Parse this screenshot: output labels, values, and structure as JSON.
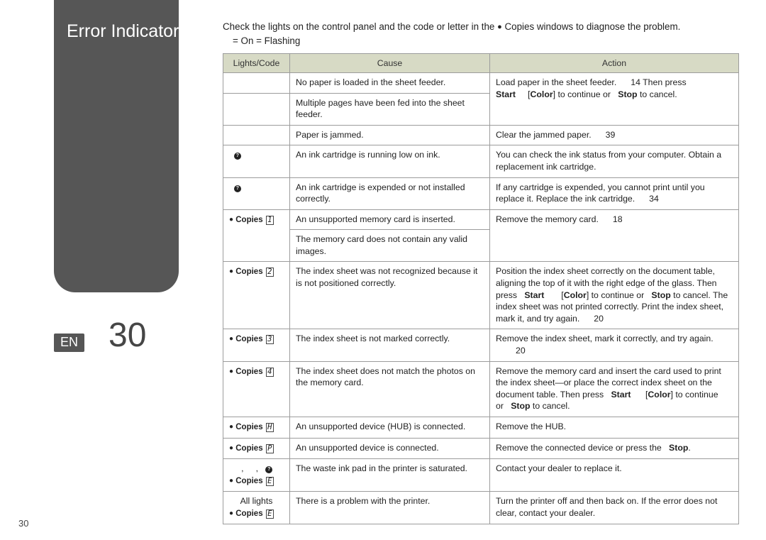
{
  "sidebar": {
    "title": "Error Indicators"
  },
  "lang": {
    "code": "EN",
    "page_big": "30"
  },
  "intro": {
    "text_a": "Check the lights on the control panel and the code or letter in the ",
    "text_b": "Copies windows to diagnose the problem.",
    "legend": "= On    = Flashing"
  },
  "table": {
    "headers": [
      "Lights/Code",
      "Cause",
      "Action"
    ],
    "rows": [
      {
        "code_html": "",
        "cause": "No paper is loaded in the sheet feeder.",
        "action_html": "Load paper in the sheet feeder.<span class='pgref'>14</span> Then press<br><b>Start</b>&nbsp;&nbsp;&nbsp;&nbsp;&nbsp;[<b>Color</b>] to continue or&nbsp;&nbsp;&nbsp;<b>Stop</b> to cancel.",
        "rowspan_action": 2
      },
      {
        "code_html": "",
        "cause": "Multiple pages have been fed into the sheet feeder.",
        "merge_action": true
      },
      {
        "code_html": "",
        "cause": "Paper is jammed.",
        "action_html": "Clear the jammed paper.<span class='pgref'>39</span>"
      },
      {
        "code_html": "&nbsp;&nbsp;<span class='ink-dot'>?</span>",
        "cause": "An ink cartridge is running low on ink.",
        "action_html": "You can check the ink status from your computer. Obtain a replacement ink cartridge."
      },
      {
        "code_html": "&nbsp;&nbsp;<span class='ink-dot'>?</span>",
        "cause": "An ink cartridge is expended or not installed correctly.",
        "action_html": "If any cartridge is expended, you cannot print until you replace it. Replace the ink cartridge.<span class='pgref'>34</span>"
      },
      {
        "code_html": "<div class='copies-ln'><span class='dot'>●</span> <b>Copies</b> <span class='boxed'>1</span></div>",
        "cause": "An unsupported memory card is inserted.",
        "action_html": "Remove the memory card.<span class='pgref'>18</span>",
        "rowspan_code": 2,
        "rowspan_action": 2
      },
      {
        "merge_code": true,
        "cause": "The memory card does not contain any valid images.",
        "merge_action": true
      },
      {
        "code_html": "<div class='copies-ln'><span class='dot'>●</span> <b>Copies</b> <span class='boxed'>2</span></div>",
        "cause": "The index sheet was not recognized because it is not positioned correctly.",
        "action_html": "Position the index sheet correctly on the document table, aligning the top of it with the right edge of the glass. Then press&nbsp;&nbsp;&nbsp;<b>Start</b>&nbsp;&nbsp;&nbsp;&nbsp;&nbsp;&nbsp;&nbsp;[<b>Color</b>] to continue or&nbsp;&nbsp;&nbsp;<b>Stop</b> to cancel. The index sheet was not printed correctly. Print the index sheet, mark it, and try again.<span class='pgref'>20</span>"
      },
      {
        "code_html": "<div class='copies-ln'><span class='dot'>●</span> <b>Copies</b> <span class='boxed'>3</span></div>",
        "cause": "The index sheet is not marked correctly.",
        "action_html": "Remove the index sheet, mark it correctly, and try again.<br><span class='pgref' style='margin-left:28px'>20</span>"
      },
      {
        "code_html": "<div class='copies-ln'><span class='dot'>●</span> <b>Copies</b> <span class='boxed'>4</span></div>",
        "cause": "The index sheet does not match the photos on the memory card.",
        "action_html": "Remove the memory card and insert the card used to print the index sheet—or place the correct index sheet on the document table. Then press&nbsp;&nbsp;&nbsp;<b>Start</b>&nbsp;&nbsp;&nbsp;&nbsp;&nbsp;&nbsp;[<b>Color</b>] to continue or&nbsp;&nbsp;&nbsp;<b>Stop</b> to cancel."
      },
      {
        "code_html": "<div class='copies-ln'><span class='dot'>●</span> <b>Copies</b> <span class='boxed'>H</span></div>",
        "cause": "An unsupported device (HUB) is connected.",
        "action_html": "Remove the HUB."
      },
      {
        "code_html": "<div class='copies-ln'><span class='dot'>●</span> <b>Copies</b> <span class='boxed'>P</span></div>",
        "cause": "An unsupported device is connected.",
        "action_html": "Remove the connected device or press the&nbsp;&nbsp;&nbsp;<b>Stop</b>."
      },
      {
        "code_html": "&nbsp;&nbsp;&nbsp;&nbsp;&nbsp;,&nbsp;&nbsp;&nbsp;&nbsp;&nbsp;,&nbsp;&nbsp;&nbsp;<span class='ink-dot'>?</span><div class='copies-ln'><span class='dot'>●</span> <b>Copies</b> <span class='boxed'>E</span></div>",
        "cause": "The waste ink pad in the printer is saturated.",
        "action_html": "Contact your dealer to replace it."
      },
      {
        "code_html": "<span class='all-lights'>All lights</span><div class='copies-ln'><span class='dot'>●</span> <b>Copies</b> <span class='boxed'>E</span></div>",
        "cause": "There is a problem with the printer.",
        "action_html": "Turn the printer off and then back on. If the error does not clear, contact your dealer."
      }
    ]
  },
  "page_corner": "30"
}
